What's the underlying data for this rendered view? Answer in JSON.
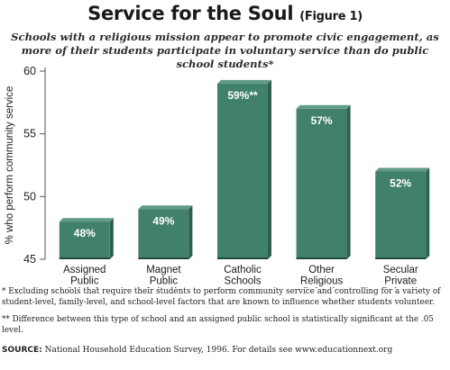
{
  "header": {
    "title": "Service for the Soul",
    "figure_label": "(Figure 1)",
    "subtitle": "Schools with a religious mission appear to promote civic engagement, as more of their students participate in voluntary service than do public school students*"
  },
  "chart_data": {
    "type": "bar",
    "title": "Service for the Soul",
    "ylabel": "% who perform community service",
    "xlabel": "",
    "ylim": [
      45,
      60
    ],
    "yticks": [
      45,
      50,
      55,
      60
    ],
    "grid": false,
    "categories": [
      "Assigned\nPublic\nSchools",
      "Magnet\nPublic\nSchools",
      "Catholic\nSchools",
      "Other\nReligious\nSchools",
      "Secular\nPrivate\nSchools"
    ],
    "values": [
      48,
      49,
      59,
      57,
      52
    ],
    "data_labels": [
      "48%",
      "49%",
      "59%**",
      "57%",
      "52%"
    ]
  },
  "colors": {
    "bar_front": "#41806b",
    "bar_side": "#2d5f4e",
    "bar_top": "#5e9a85",
    "bar_base": "#1f4a3c",
    "axis": "#555555"
  },
  "footnotes": {
    "note1": "* Excluding schools that require their students to perform community service and controlling for a variety of student-level, family-level, and school-level factors that are known to influence whether students volunteer.",
    "note2": "** Difference between this type of school and an assigned public school is statistically significant at the .05 level.",
    "source_head": "SOURCE:",
    "source_text": " National Household Education Survey, 1996. For details see www.educationnext.org"
  }
}
